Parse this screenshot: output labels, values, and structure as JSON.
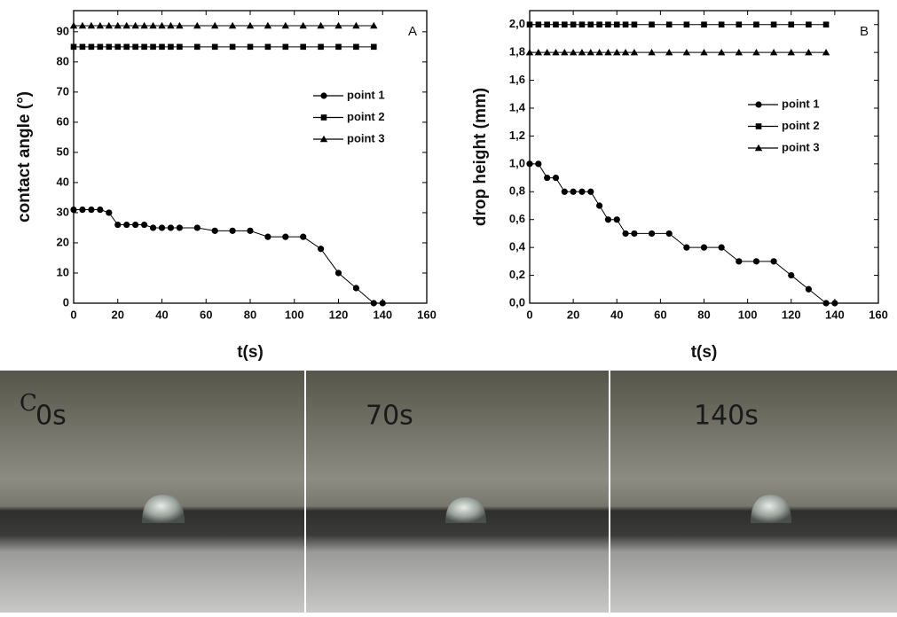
{
  "chart_data": [
    {
      "type": "line",
      "panel_label": "A",
      "x_label": "t(s)",
      "y_label": "contact angle (°)",
      "xlim": [
        0,
        160
      ],
      "xticks": [
        0,
        20,
        40,
        60,
        80,
        100,
        120,
        140,
        160
      ],
      "ylim": [
        0,
        97
      ],
      "yticks": [
        0,
        10,
        20,
        30,
        40,
        50,
        60,
        70,
        80,
        90
      ],
      "series": [
        {
          "name": "point 1",
          "color": "#000000",
          "marker": "circle",
          "x": [
            0,
            4,
            8,
            12,
            16,
            20,
            24,
            28,
            32,
            36,
            40,
            44,
            48,
            56,
            64,
            72,
            80,
            88,
            96,
            104,
            112,
            120,
            128,
            136,
            140
          ],
          "values": [
            31,
            31,
            31,
            31,
            30,
            26,
            26,
            26,
            26,
            25,
            25,
            25,
            25,
            25,
            24,
            24,
            24,
            22,
            22,
            22,
            18,
            10,
            5,
            0,
            0
          ]
        },
        {
          "name": "point 2",
          "color": "#000000",
          "marker": "square",
          "x": [
            0,
            4,
            8,
            12,
            16,
            20,
            24,
            28,
            32,
            36,
            40,
            44,
            48,
            56,
            64,
            72,
            80,
            88,
            96,
            104,
            112,
            120,
            128,
            136
          ],
          "values": [
            85,
            85,
            85,
            85,
            85,
            85,
            85,
            85,
            85,
            85,
            85,
            85,
            85,
            85,
            85,
            85,
            85,
            85,
            85,
            85,
            85,
            85,
            85,
            85
          ]
        },
        {
          "name": "point 3",
          "color": "#000000",
          "marker": "triangle",
          "x": [
            0,
            4,
            8,
            12,
            16,
            20,
            24,
            28,
            32,
            36,
            40,
            44,
            48,
            56,
            64,
            72,
            80,
            88,
            96,
            104,
            112,
            120,
            128,
            136
          ],
          "values": [
            92,
            92,
            92,
            92,
            92,
            92,
            92,
            92,
            92,
            92,
            92,
            92,
            92,
            92,
            92,
            92,
            92,
            92,
            92,
            92,
            92,
            92,
            92,
            92
          ]
        }
      ]
    },
    {
      "type": "line",
      "panel_label": "B",
      "x_label": "t(s)",
      "y_label": "drop height (mm)",
      "xlim": [
        0,
        160
      ],
      "xticks": [
        0,
        20,
        40,
        60,
        80,
        100,
        120,
        140,
        160
      ],
      "ylim": [
        0,
        2.1
      ],
      "yticks": [
        {
          "value": 0,
          "label": "0,0"
        },
        {
          "value": 0.2,
          "label": "0,2"
        },
        {
          "value": 0.4,
          "label": "0,4"
        },
        {
          "value": 0.6,
          "label": "0,6"
        },
        {
          "value": 0.8,
          "label": "0,8"
        },
        {
          "value": 1.0,
          "label": "1,0"
        },
        {
          "value": 1.2,
          "label": "1,2"
        },
        {
          "value": 1.4,
          "label": "1,4"
        },
        {
          "value": 1.6,
          "label": "1,6"
        },
        {
          "value": 1.8,
          "label": "1,8"
        },
        {
          "value": 2.0,
          "label": "2,0"
        }
      ],
      "series": [
        {
          "name": "point 1",
          "color": "#000000",
          "marker": "circle",
          "x": [
            0,
            4,
            8,
            12,
            16,
            20,
            24,
            28,
            32,
            36,
            40,
            44,
            48,
            56,
            64,
            72,
            80,
            88,
            96,
            104,
            112,
            120,
            128,
            136,
            140
          ],
          "values": [
            1.0,
            1.0,
            0.9,
            0.9,
            0.8,
            0.8,
            0.8,
            0.8,
            0.7,
            0.6,
            0.6,
            0.5,
            0.5,
            0.5,
            0.5,
            0.4,
            0.4,
            0.4,
            0.3,
            0.3,
            0.3,
            0.2,
            0.1,
            0,
            0
          ]
        },
        {
          "name": "point 2",
          "color": "#000000",
          "marker": "square",
          "x": [
            0,
            4,
            8,
            12,
            16,
            20,
            24,
            28,
            32,
            36,
            40,
            44,
            48,
            56,
            64,
            72,
            80,
            88,
            96,
            104,
            112,
            120,
            128,
            136
          ],
          "values": [
            2.0,
            2.0,
            2.0,
            2.0,
            2.0,
            2.0,
            2.0,
            2.0,
            2.0,
            2.0,
            2.0,
            2.0,
            2.0,
            2.0,
            2.0,
            2.0,
            2.0,
            2.0,
            2.0,
            2.0,
            2.0,
            2.0,
            2.0,
            2.0
          ]
        },
        {
          "name": "point 3",
          "color": "#000000",
          "marker": "triangle",
          "x": [
            0,
            4,
            8,
            12,
            16,
            20,
            24,
            28,
            32,
            36,
            40,
            44,
            48,
            56,
            64,
            72,
            80,
            88,
            96,
            104,
            112,
            120,
            128,
            136
          ],
          "values": [
            1.8,
            1.8,
            1.8,
            1.8,
            1.8,
            1.8,
            1.8,
            1.8,
            1.8,
            1.8,
            1.8,
            1.8,
            1.8,
            1.8,
            1.8,
            1.8,
            1.8,
            1.8,
            1.8,
            1.8,
            1.8,
            1.8,
            1.8,
            1.8
          ]
        }
      ]
    }
  ],
  "photos": {
    "panel_label": "C",
    "captions": [
      "0s",
      "70s",
      "140s"
    ]
  }
}
